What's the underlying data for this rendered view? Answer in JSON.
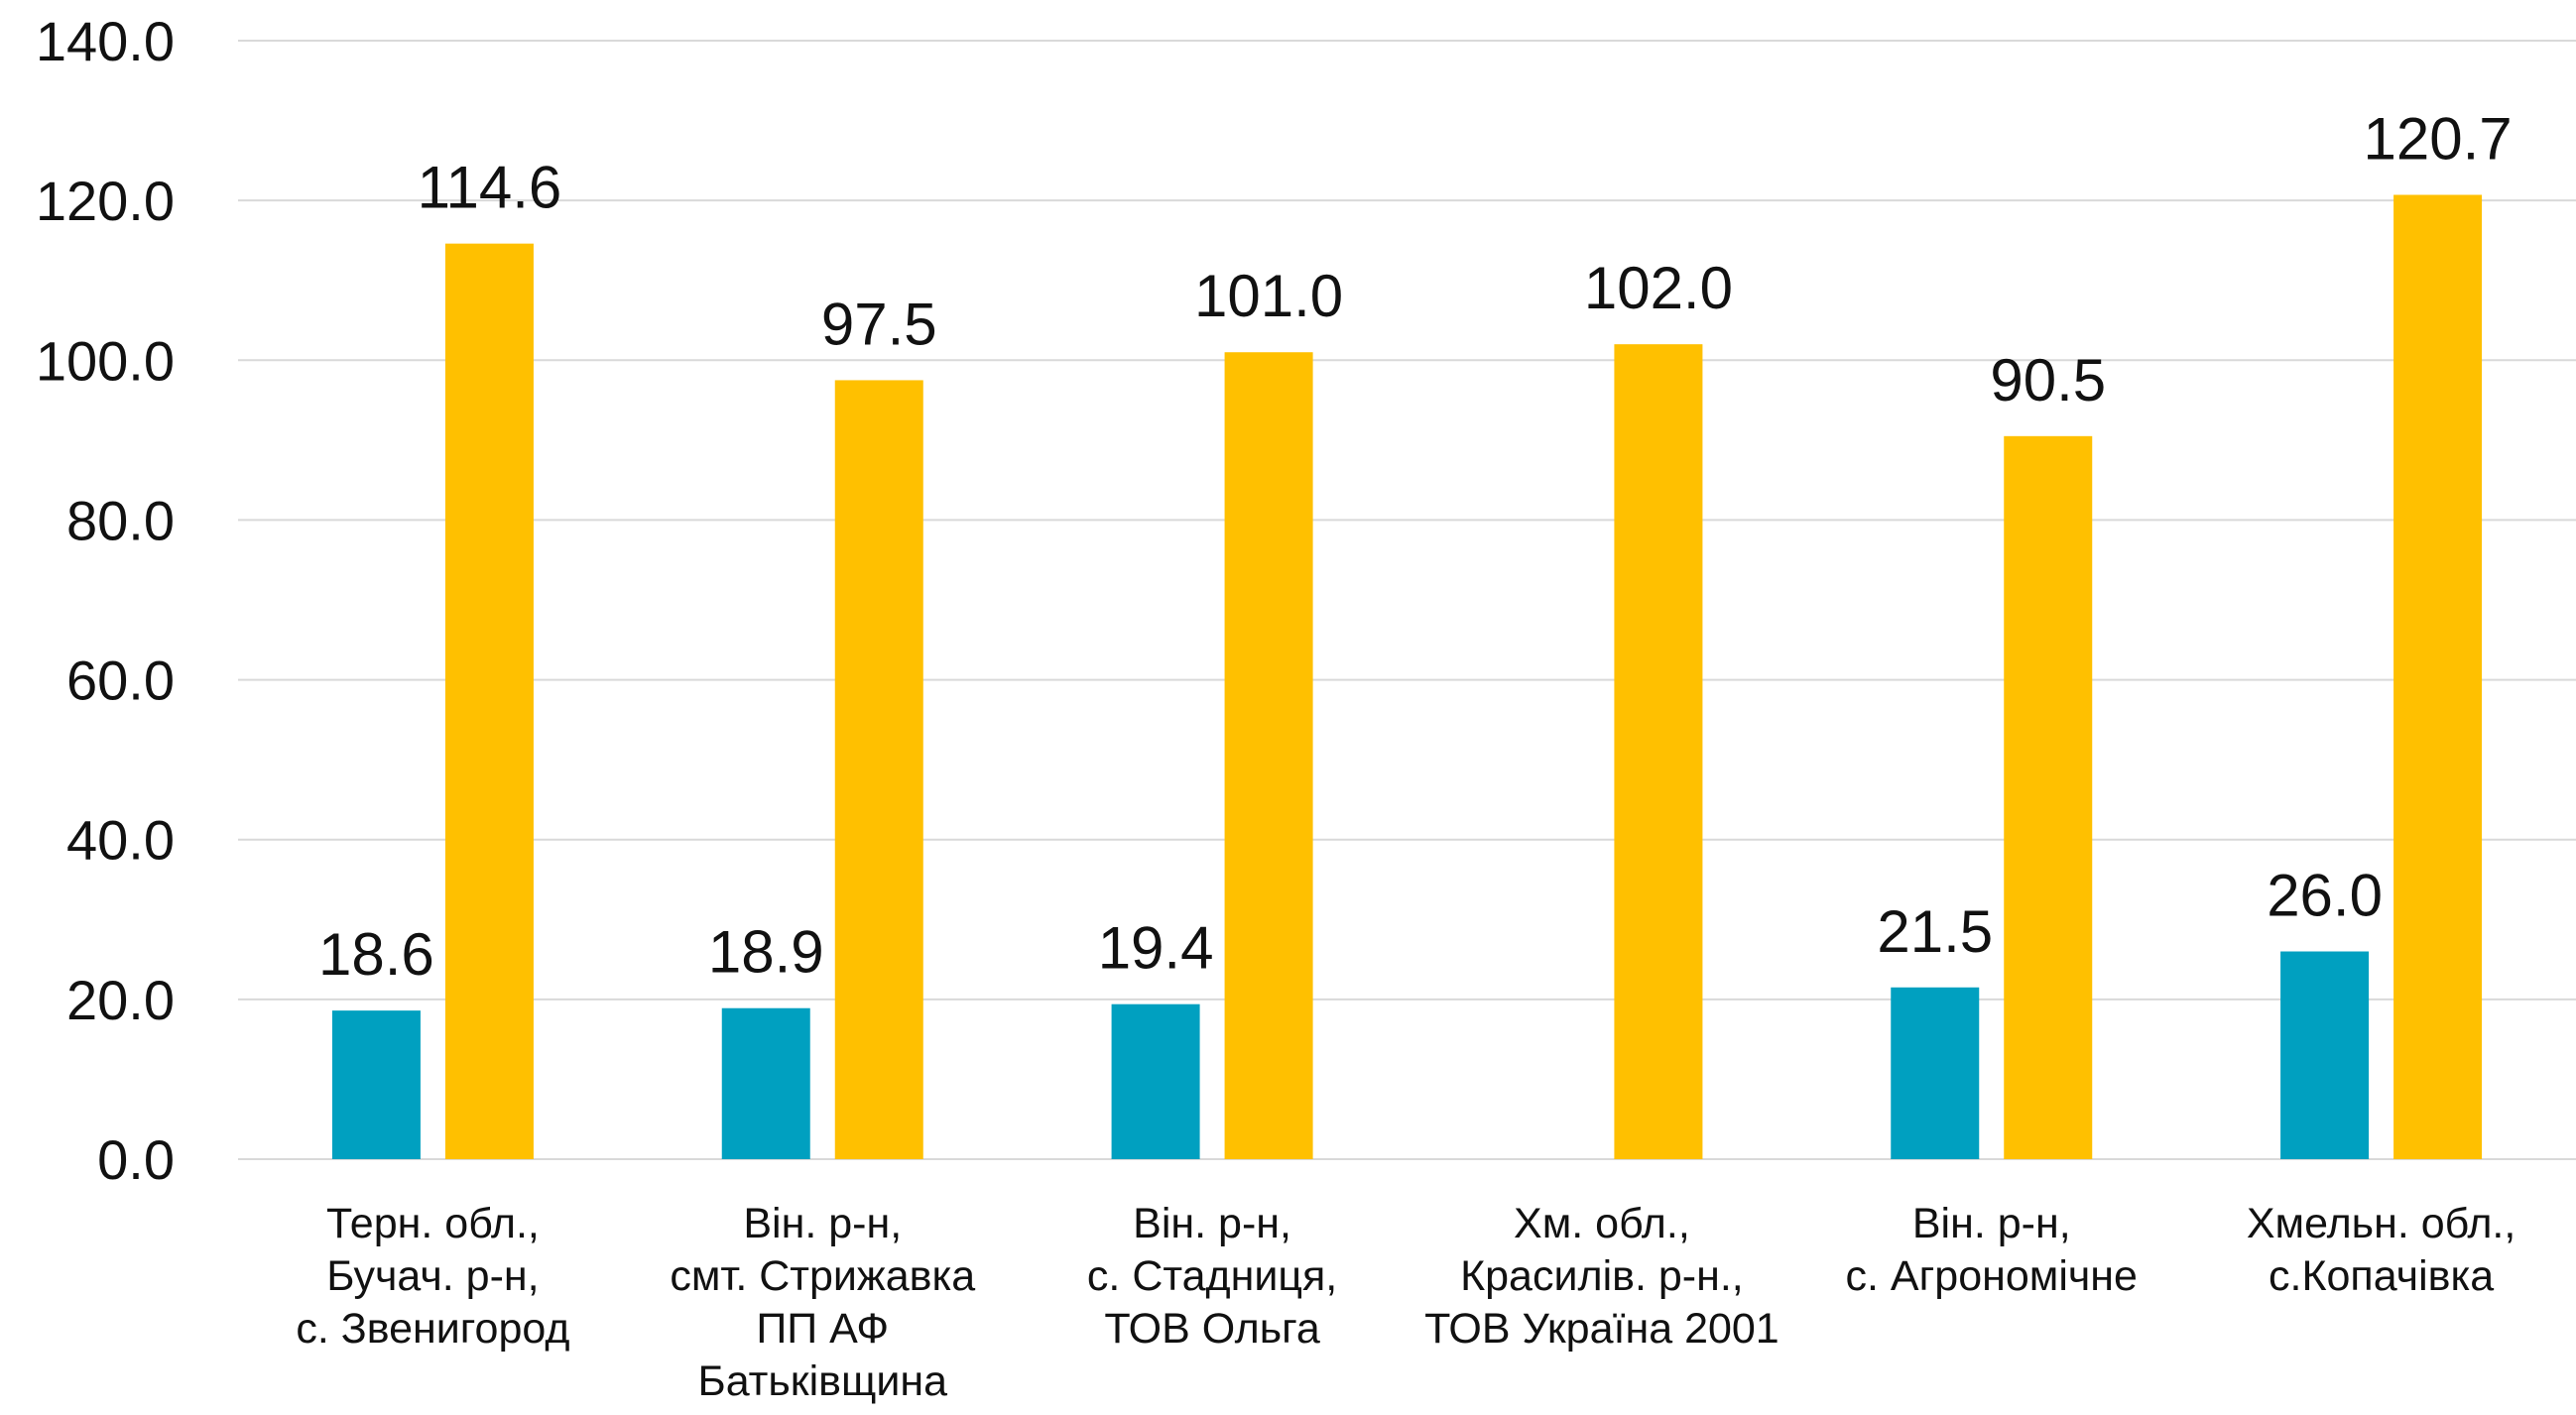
{
  "chart_data": {
    "type": "bar",
    "categories": [
      "Терн. обл.,\nБучач. р-н,\nс. Звенигород",
      "Він. р-н,\nсмт. Стрижавка\nПП АФ\nБатьківщина",
      "Він. р-н,\nс. Стадниця,\nТОВ Ольга",
      "Хм. обл.,\nКрасилів. р-н.,\nТОВ Україна 2001",
      "Він. р-н,\nс. Агрономічне",
      "Хмельн. обл.,\nс.Копачівка"
    ],
    "series": [
      {
        "color": "#00a0c0",
        "values": [
          18.6,
          18.9,
          19.4,
          null,
          21.5,
          26.0
        ],
        "value_labels": [
          "18.6",
          "18.9",
          "19.4",
          null,
          "21.5",
          "26.0"
        ]
      },
      {
        "color": "#ffc000",
        "values": [
          114.6,
          97.5,
          101.0,
          102.0,
          90.5,
          120.7
        ],
        "value_labels": [
          "114.6",
          "97.5",
          "101.0",
          "102.0",
          "90.5",
          "120.7"
        ]
      }
    ],
    "ylim": [
      0,
      140
    ],
    "yticks": [
      {
        "value": 0,
        "label": "0.0"
      },
      {
        "value": 20,
        "label": "20.0"
      },
      {
        "value": 40,
        "label": "40.0"
      },
      {
        "value": 60,
        "label": "60.0"
      },
      {
        "value": 80,
        "label": "80.0"
      },
      {
        "value": 100,
        "label": "100.0"
      },
      {
        "value": 120,
        "label": "120.0"
      },
      {
        "value": 140,
        "label": "140.0"
      }
    ],
    "grid": true
  }
}
